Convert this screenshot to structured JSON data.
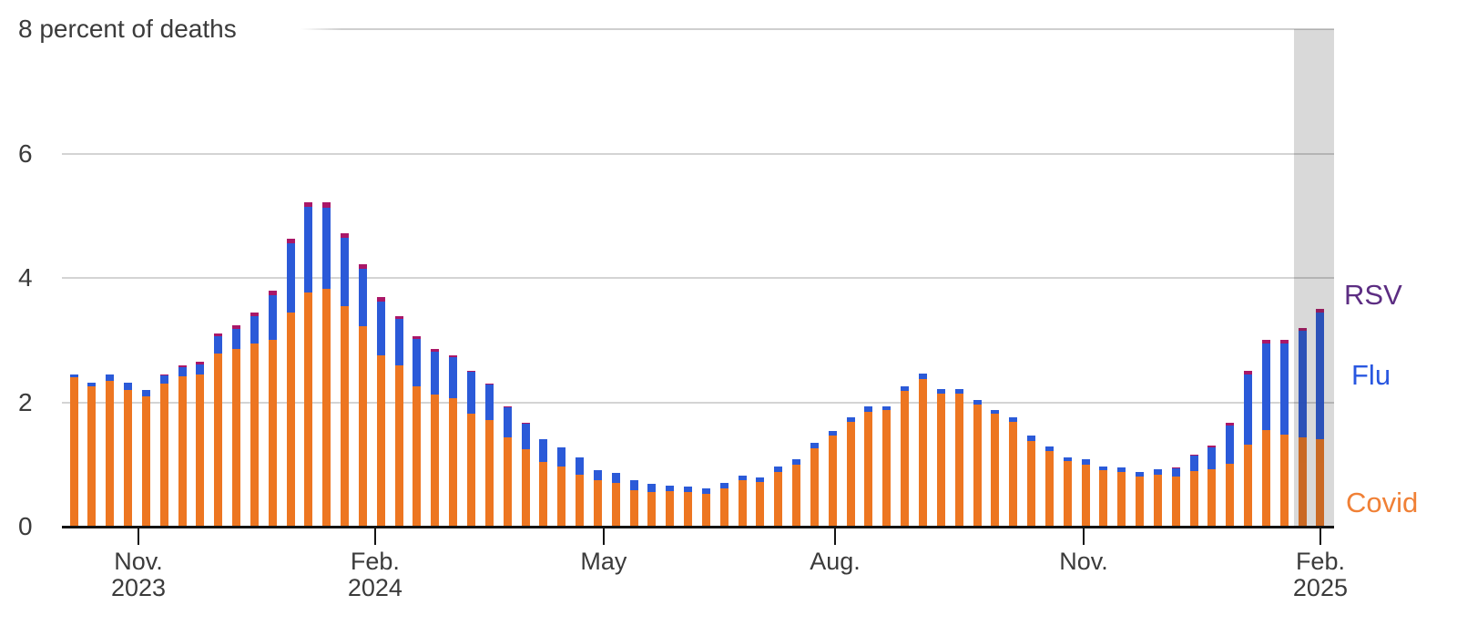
{
  "chart_data": {
    "type": "bar",
    "stacked": true,
    "title": "",
    "y_axis": {
      "annotation": "8 percent of deaths",
      "tick_labels": [
        "6",
        "4",
        "2",
        "0"
      ],
      "grid_values": [
        8,
        6,
        4,
        2
      ],
      "ylim": [
        0,
        8
      ],
      "grid": true
    },
    "x_axis": {
      "ticks": [
        {
          "label": "Nov.",
          "sublabel": "2023",
          "bar_index": 3.58
        },
        {
          "label": "Feb.",
          "sublabel": "2024",
          "bar_index": 16.68
        },
        {
          "label": "May",
          "sublabel": "",
          "bar_index": 29.33
        },
        {
          "label": "Aug.",
          "sublabel": "",
          "bar_index": 42.14
        },
        {
          "label": "Nov.",
          "sublabel": "",
          "bar_index": 55.9
        },
        {
          "label": "Feb.",
          "sublabel": "2025",
          "bar_index": 69.0
        }
      ]
    },
    "num_bars": 70,
    "series": [
      {
        "name": "Covid",
        "color": "#ED7621",
        "label_color": "#F08036",
        "values": [
          2.4,
          2.25,
          2.35,
          2.2,
          2.1,
          2.3,
          2.42,
          2.45,
          2.78,
          2.86,
          2.95,
          3.0,
          3.45,
          3.77,
          3.82,
          3.54,
          3.23,
          2.76,
          2.6,
          2.26,
          2.13,
          2.07,
          1.81,
          1.71,
          1.44,
          1.25,
          1.04,
          0.96,
          0.84,
          0.74,
          0.71,
          0.59,
          0.56,
          0.57,
          0.56,
          0.52,
          0.62,
          0.74,
          0.72,
          0.88,
          1.0,
          1.26,
          1.47,
          1.69,
          1.85,
          1.87,
          2.19,
          2.37,
          2.14,
          2.14,
          1.97,
          1.81,
          1.69,
          1.38,
          1.22,
          1.06,
          1.0,
          0.91,
          0.88,
          0.81,
          0.84,
          0.81,
          0.9,
          0.93,
          1.01,
          1.32,
          1.55,
          1.48,
          1.43,
          1.4
        ]
      },
      {
        "name": "Flu",
        "color": "#2B5AD8",
        "label_color": "#2957E0",
        "values": [
          0.05,
          0.06,
          0.1,
          0.12,
          0.1,
          0.13,
          0.15,
          0.16,
          0.28,
          0.32,
          0.44,
          0.72,
          1.1,
          1.37,
          1.31,
          1.1,
          0.92,
          0.86,
          0.74,
          0.76,
          0.68,
          0.66,
          0.68,
          0.57,
          0.48,
          0.41,
          0.36,
          0.32,
          0.28,
          0.17,
          0.16,
          0.15,
          0.13,
          0.09,
          0.09,
          0.1,
          0.09,
          0.08,
          0.07,
          0.08,
          0.09,
          0.09,
          0.07,
          0.07,
          0.08,
          0.07,
          0.07,
          0.09,
          0.07,
          0.07,
          0.06,
          0.07,
          0.07,
          0.08,
          0.07,
          0.06,
          0.09,
          0.06,
          0.07,
          0.07,
          0.09,
          0.13,
          0.24,
          0.35,
          0.62,
          1.13,
          1.4,
          1.47,
          1.72,
          2.05
        ]
      },
      {
        "name": "RSV",
        "color": "#AA1768",
        "label_color": "#5C2D82",
        "values": [
          0,
          0,
          0,
          0,
          0,
          0.02,
          0.03,
          0.04,
          0.05,
          0.06,
          0.06,
          0.08,
          0.08,
          0.08,
          0.08,
          0.08,
          0.07,
          0.07,
          0.05,
          0.04,
          0.04,
          0.03,
          0.02,
          0.02,
          0.01,
          0.01,
          0.01,
          0,
          0,
          0,
          0,
          0,
          0,
          0,
          0,
          0,
          0,
          0,
          0,
          0,
          0,
          0,
          0,
          0,
          0,
          0,
          0,
          0,
          0,
          0,
          0,
          0,
          0,
          0,
          0,
          0,
          0,
          0,
          0,
          0,
          0,
          0.01,
          0.02,
          0.03,
          0.04,
          0.05,
          0.05,
          0.05,
          0.05,
          0.05
        ]
      }
    ],
    "legend": {
      "position": "right",
      "entries": [
        {
          "label": "RSV",
          "color": "#5C2D82"
        },
        {
          "label": "Flu",
          "color": "#2957E0"
        },
        {
          "label": "Covid",
          "color": "#F08036"
        }
      ]
    },
    "provisional_band": {
      "covers_last_bars": 2,
      "color": "#D9D9D9"
    }
  }
}
